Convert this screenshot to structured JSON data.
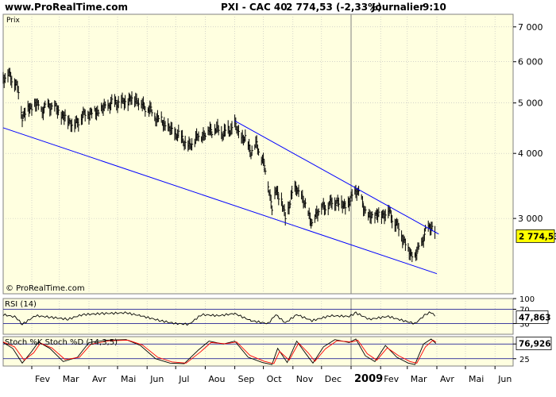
{
  "header": {
    "site": "www.ProRealTime.com",
    "title": "PXI - CAC 40",
    "price_line": "2 774,53 (-2,33%)",
    "period": "Journalier",
    "time": "9:10"
  },
  "watermark": "© ProRealTime.com",
  "colors": {
    "background": "#ffffe0",
    "price": "#000000",
    "trendline": "#0000ff",
    "rsi_band": "#00008b",
    "stoch_k": "#000000",
    "stoch_d": "#ff0000",
    "grid": "#bbbbbb"
  },
  "chart_data": [
    {
      "type": "bar",
      "panel": "price",
      "panel_label": "Prix",
      "scale": "log",
      "ylim": [
        2150,
        7400
      ],
      "yticks": [
        3000,
        4000,
        5000,
        6000,
        7000
      ],
      "ytick_labels": [
        "3 000",
        "4 000",
        "5 000",
        "6 000",
        "7 000"
      ],
      "xlim": [
        "2008-01-02",
        "2009-06-20"
      ],
      "xticks": [
        {
          "date": "2008-02-01",
          "label": "Fev"
        },
        {
          "date": "2008-03-01",
          "label": "Mar"
        },
        {
          "date": "2008-04-01",
          "label": "Avr"
        },
        {
          "date": "2008-05-01",
          "label": "Mai"
        },
        {
          "date": "2008-06-01",
          "label": "Jun"
        },
        {
          "date": "2008-07-01",
          "label": "Jul"
        },
        {
          "date": "2008-08-01",
          "label": "Aou"
        },
        {
          "date": "2008-09-01",
          "label": "Sep"
        },
        {
          "date": "2008-10-01",
          "label": "Oct"
        },
        {
          "date": "2008-11-01",
          "label": "Nov"
        },
        {
          "date": "2008-12-01",
          "label": "Dec"
        },
        {
          "date": "2009-01-01",
          "label": "2009"
        },
        {
          "date": "2009-02-01",
          "label": "Fev"
        },
        {
          "date": "2009-03-01",
          "label": "Mar"
        },
        {
          "date": "2009-04-01",
          "label": "Avr"
        },
        {
          "date": "2009-05-01",
          "label": "Mai"
        },
        {
          "date": "2009-06-01",
          "label": "Jun"
        }
      ],
      "last_value": 2774.53,
      "last_value_label": "2 774,53",
      "series": [
        {
          "values_close": [
            [
              "2008-01-02",
              5610
            ],
            [
              "2008-01-08",
              5660
            ],
            [
              "2008-01-14",
              5500
            ],
            [
              "2008-01-18",
              5250
            ],
            [
              "2008-01-22",
              4720
            ],
            [
              "2008-01-28",
              4870
            ],
            [
              "2008-02-05",
              4960
            ],
            [
              "2008-02-12",
              4840
            ],
            [
              "2008-02-19",
              4950
            ],
            [
              "2008-02-26",
              4880
            ],
            [
              "2008-03-04",
              4720
            ],
            [
              "2008-03-10",
              4650
            ],
            [
              "2008-03-17",
              4530
            ],
            [
              "2008-03-24",
              4700
            ],
            [
              "2008-03-31",
              4780
            ],
            [
              "2008-04-08",
              4800
            ],
            [
              "2008-04-15",
              4850
            ],
            [
              "2008-04-22",
              4960
            ],
            [
              "2008-04-29",
              5020
            ],
            [
              "2008-05-06",
              5000
            ],
            [
              "2008-05-13",
              5060
            ],
            [
              "2008-05-20",
              5110
            ],
            [
              "2008-05-27",
              4950
            ],
            [
              "2008-06-03",
              4860
            ],
            [
              "2008-06-10",
              4700
            ],
            [
              "2008-06-17",
              4600
            ],
            [
              "2008-06-24",
              4450
            ],
            [
              "2008-07-01",
              4360
            ],
            [
              "2008-07-08",
              4280
            ],
            [
              "2008-07-15",
              4100
            ],
            [
              "2008-07-21",
              4270
            ],
            [
              "2008-07-28",
              4330
            ],
            [
              "2008-08-05",
              4420
            ],
            [
              "2008-08-12",
              4450
            ],
            [
              "2008-08-19",
              4380
            ],
            [
              "2008-08-26",
              4420
            ],
            [
              "2008-09-01",
              4550
            ],
            [
              "2008-09-05",
              4350
            ],
            [
              "2008-09-12",
              4250
            ],
            [
              "2008-09-18",
              4050
            ],
            [
              "2008-09-24",
              4150
            ],
            [
              "2008-09-30",
              3900
            ],
            [
              "2008-10-06",
              3500
            ],
            [
              "2008-10-10",
              3150
            ],
            [
              "2008-10-14",
              3400
            ],
            [
              "2008-10-20",
              3250
            ],
            [
              "2008-10-24",
              2980
            ],
            [
              "2008-10-30",
              3300
            ],
            [
              "2008-11-05",
              3450
            ],
            [
              "2008-11-11",
              3250
            ],
            [
              "2008-11-17",
              3100
            ],
            [
              "2008-11-21",
              2900
            ],
            [
              "2008-11-26",
              3100
            ],
            [
              "2008-12-03",
              3150
            ],
            [
              "2008-12-10",
              3200
            ],
            [
              "2008-12-17",
              3250
            ],
            [
              "2008-12-23",
              3180
            ],
            [
              "2008-12-30",
              3200
            ],
            [
              "2009-01-06",
              3420
            ],
            [
              "2009-01-12",
              3250
            ],
            [
              "2009-01-19",
              3000
            ],
            [
              "2009-01-26",
              3050
            ],
            [
              "2009-02-02",
              3050
            ],
            [
              "2009-02-09",
              3100
            ],
            [
              "2009-02-16",
              2950
            ],
            [
              "2009-02-23",
              2800
            ],
            [
              "2009-03-02",
              2600
            ],
            [
              "2009-03-09",
              2520
            ],
            [
              "2009-03-16",
              2700
            ],
            [
              "2009-03-20",
              2820
            ],
            [
              "2009-03-26",
              2920
            ],
            [
              "2009-03-31",
              2774
            ]
          ]
        }
      ],
      "trendlines": [
        {
          "from": [
            "2008-01-02",
            4480
          ],
          "to": [
            "2009-04-01",
            2350
          ]
        },
        {
          "from": [
            "2008-09-01",
            4620
          ],
          "to": [
            "2009-04-03",
            2800
          ]
        }
      ]
    },
    {
      "type": "line",
      "panel": "rsi",
      "panel_label": "RSI (14)",
      "ylim": [
        0,
        100
      ],
      "yticks": [
        30,
        70,
        100
      ],
      "ytick_labels": [
        "30",
        "70",
        "100"
      ],
      "last_value_label": "47,863",
      "series": [
        {
          "name": "RSI (14)",
          "values": [
            [
              "2008-01-02",
              55
            ],
            [
              "2008-01-15",
              48
            ],
            [
              "2008-01-22",
              28
            ],
            [
              "2008-02-05",
              52
            ],
            [
              "2008-02-20",
              48
            ],
            [
              "2008-03-10",
              42
            ],
            [
              "2008-03-25",
              55
            ],
            [
              "2008-04-15",
              58
            ],
            [
              "2008-05-10",
              60
            ],
            [
              "2008-05-25",
              52
            ],
            [
              "2008-06-15",
              38
            ],
            [
              "2008-07-01",
              30
            ],
            [
              "2008-07-15",
              28
            ],
            [
              "2008-07-28",
              55
            ],
            [
              "2008-08-15",
              52
            ],
            [
              "2008-09-01",
              58
            ],
            [
              "2008-09-18",
              38
            ],
            [
              "2008-10-06",
              30
            ],
            [
              "2008-10-14",
              55
            ],
            [
              "2008-10-24",
              32
            ],
            [
              "2008-11-05",
              55
            ],
            [
              "2008-11-21",
              38
            ],
            [
              "2008-12-10",
              52
            ],
            [
              "2008-12-30",
              50
            ],
            [
              "2009-01-06",
              60
            ],
            [
              "2009-01-20",
              42
            ],
            [
              "2009-02-09",
              50
            ],
            [
              "2009-02-25",
              38
            ],
            [
              "2009-03-09",
              30
            ],
            [
              "2009-03-20",
              55
            ],
            [
              "2009-03-26",
              62
            ],
            [
              "2009-03-31",
              48
            ]
          ]
        }
      ]
    },
    {
      "type": "line",
      "panel": "stoch",
      "panel_label": "Stoch %K Stoch %D (14,3,5)",
      "ylim": [
        0,
        100
      ],
      "yticks": [
        25,
        75
      ],
      "ytick_labels": [
        "25",
        "75"
      ],
      "last_value_label": "76,926",
      "series": [
        {
          "name": "Stoch %K",
          "values": [
            [
              "2008-01-02",
              80
            ],
            [
              "2008-01-12",
              60
            ],
            [
              "2008-01-22",
              10
            ],
            [
              "2008-02-01",
              50
            ],
            [
              "2008-02-08",
              82
            ],
            [
              "2008-02-20",
              60
            ],
            [
              "2008-03-05",
              15
            ],
            [
              "2008-03-20",
              30
            ],
            [
              "2008-04-01",
              80
            ],
            [
              "2008-04-20",
              88
            ],
            [
              "2008-05-10",
              90
            ],
            [
              "2008-05-25",
              70
            ],
            [
              "2008-06-10",
              25
            ],
            [
              "2008-06-25",
              10
            ],
            [
              "2008-07-10",
              8
            ],
            [
              "2008-07-25",
              55
            ],
            [
              "2008-08-05",
              85
            ],
            [
              "2008-08-20",
              75
            ],
            [
              "2008-09-01",
              85
            ],
            [
              "2008-09-15",
              30
            ],
            [
              "2008-09-30",
              12
            ],
            [
              "2008-10-10",
              5
            ],
            [
              "2008-10-16",
              60
            ],
            [
              "2008-10-26",
              12
            ],
            [
              "2008-11-05",
              85
            ],
            [
              "2008-11-15",
              40
            ],
            [
              "2008-11-22",
              10
            ],
            [
              "2008-12-03",
              65
            ],
            [
              "2008-12-15",
              90
            ],
            [
              "2008-12-30",
              80
            ],
            [
              "2009-01-06",
              92
            ],
            [
              "2009-01-16",
              35
            ],
            [
              "2009-01-26",
              15
            ],
            [
              "2009-02-06",
              70
            ],
            [
              "2009-02-18",
              30
            ],
            [
              "2009-03-02",
              10
            ],
            [
              "2009-03-09",
              5
            ],
            [
              "2009-03-18",
              75
            ],
            [
              "2009-03-26",
              92
            ],
            [
              "2009-03-31",
              77
            ]
          ]
        },
        {
          "name": "Stoch %D",
          "values": [
            [
              "2008-01-02",
              82
            ],
            [
              "2008-01-14",
              65
            ],
            [
              "2008-01-24",
              20
            ],
            [
              "2008-02-03",
              45
            ],
            [
              "2008-02-10",
              78
            ],
            [
              "2008-02-22",
              62
            ],
            [
              "2008-03-07",
              22
            ],
            [
              "2008-03-22",
              30
            ],
            [
              "2008-04-03",
              74
            ],
            [
              "2008-04-22",
              86
            ],
            [
              "2008-05-12",
              88
            ],
            [
              "2008-05-27",
              72
            ],
            [
              "2008-06-12",
              30
            ],
            [
              "2008-06-27",
              14
            ],
            [
              "2008-07-12",
              10
            ],
            [
              "2008-07-27",
              48
            ],
            [
              "2008-08-07",
              80
            ],
            [
              "2008-08-22",
              76
            ],
            [
              "2008-09-03",
              82
            ],
            [
              "2008-09-17",
              36
            ],
            [
              "2008-10-02",
              16
            ],
            [
              "2008-10-12",
              8
            ],
            [
              "2008-10-18",
              50
            ],
            [
              "2008-10-28",
              20
            ],
            [
              "2008-11-07",
              78
            ],
            [
              "2008-11-17",
              45
            ],
            [
              "2008-11-24",
              16
            ],
            [
              "2008-12-05",
              58
            ],
            [
              "2008-12-17",
              86
            ],
            [
              "2009-01-02",
              82
            ],
            [
              "2009-01-08",
              88
            ],
            [
              "2009-01-18",
              42
            ],
            [
              "2009-01-28",
              20
            ],
            [
              "2009-02-08",
              62
            ],
            [
              "2009-02-20",
              35
            ],
            [
              "2009-03-04",
              15
            ],
            [
              "2009-03-11",
              10
            ],
            [
              "2009-03-20",
              65
            ],
            [
              "2009-03-28",
              88
            ],
            [
              "2009-03-31",
              82
            ]
          ]
        }
      ]
    }
  ]
}
